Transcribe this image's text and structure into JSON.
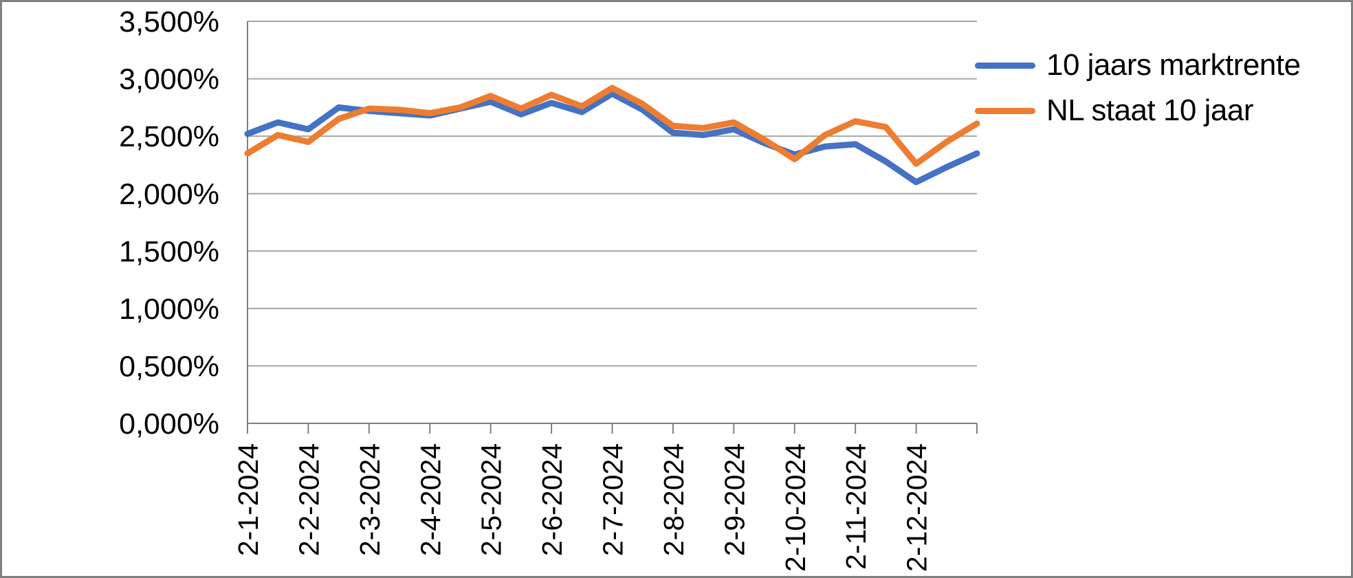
{
  "chart_data": {
    "type": "line",
    "title": "",
    "xlabel": "",
    "ylabel": "",
    "x_tick_labels": [
      "2-1-2024",
      "2-2-2024",
      "2-3-2024",
      "2-4-2024",
      "2-5-2024",
      "2-6-2024",
      "2-7-2024",
      "2-8-2024",
      "2-9-2024",
      "2-10-2024",
      "2-11-2024",
      "2-12-2024"
    ],
    "y_tick_labels": [
      "0,000%",
      "0,500%",
      "1,000%",
      "1,500%",
      "2,000%",
      "2,500%",
      "3,000%",
      "3,500%"
    ],
    "ylim": [
      0,
      3.5
    ],
    "y_step": 0.5,
    "grid": true,
    "legend_position": "top-right",
    "points_per_month": 2,
    "series": [
      {
        "name": "10 jaars marktrente",
        "color": "#4472C4",
        "values": [
          2.52,
          2.62,
          2.56,
          2.75,
          2.72,
          2.7,
          2.68,
          2.74,
          2.8,
          2.69,
          2.79,
          2.71,
          2.87,
          2.73,
          2.53,
          2.51,
          2.56,
          2.44,
          2.34,
          2.41,
          2.43,
          2.28,
          2.1,
          2.23,
          2.35
        ]
      },
      {
        "name": "NL staat 10 jaar",
        "color": "#ED7D31",
        "values": [
          2.35,
          2.51,
          2.45,
          2.65,
          2.74,
          2.73,
          2.7,
          2.75,
          2.85,
          2.74,
          2.86,
          2.76,
          2.92,
          2.78,
          2.59,
          2.57,
          2.62,
          2.47,
          2.3,
          2.51,
          2.63,
          2.58,
          2.26,
          2.45,
          2.61
        ]
      }
    ]
  },
  "colors": {
    "background": "#FFFFFF",
    "gridline": "#A6A6A6",
    "axis": "#808080",
    "frame": "#808080",
    "text": "#000000"
  }
}
